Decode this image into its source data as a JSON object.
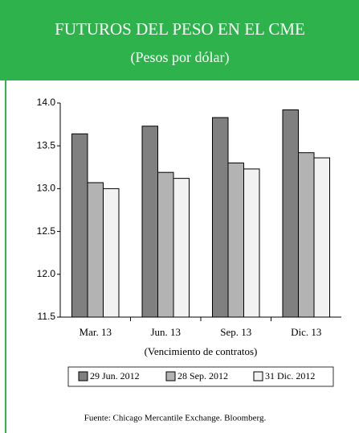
{
  "chart_data": {
    "type": "bar",
    "title": "FUTUROS DEL PESO EN EL CME",
    "subtitle": "(Pesos por dólar)",
    "x_label": "(Vencimiento de contratos)",
    "source": "Fuente: Chicago Mercantile Exchange. Bloomberg.",
    "categories": [
      "Mar. 13",
      "Jun. 13",
      "Sep. 13",
      "Dic. 13"
    ],
    "series": [
      {
        "name": "29 Jun. 2012",
        "color": "#808080",
        "values": [
          13.64,
          13.73,
          13.83,
          13.92
        ]
      },
      {
        "name": "28 Sep. 2012",
        "color": "#b3b3b3",
        "values": [
          13.07,
          13.19,
          13.3,
          13.42
        ]
      },
      {
        "name": "31 Dic. 2012",
        "color": "#f2f2f2",
        "values": [
          13.0,
          13.12,
          13.23,
          13.36
        ]
      }
    ],
    "ylim": [
      11.5,
      14
    ],
    "yticks": [
      11.5,
      {
        "value": 12,
        "label": "12.0"
      },
      12.5,
      {
        "value": 13,
        "label": "13.0"
      },
      13.5,
      {
        "value": 14,
        "label": "14.0"
      }
    ],
    "grid": false,
    "header_color": "#2eb24b"
  }
}
